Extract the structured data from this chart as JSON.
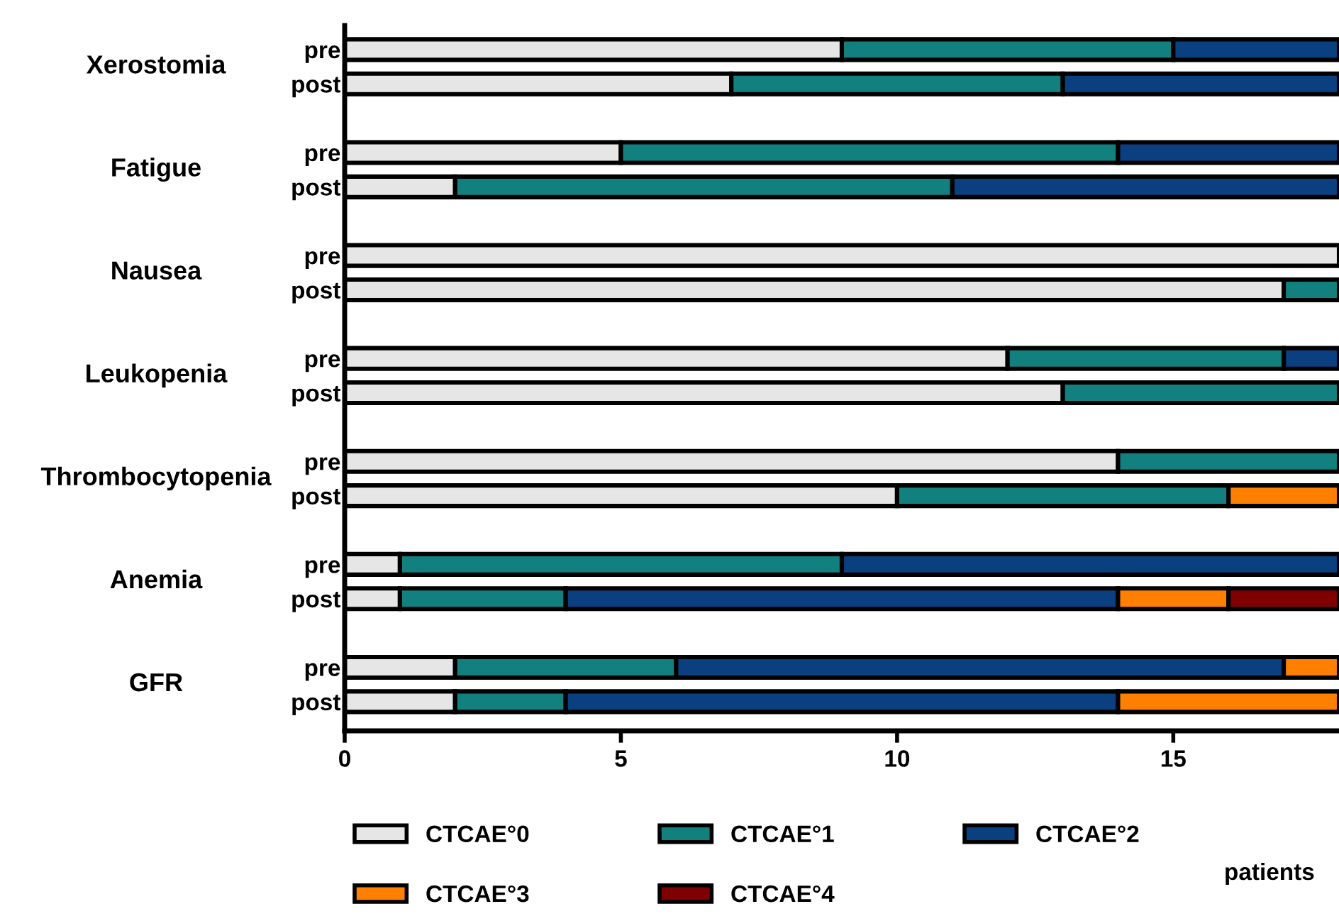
{
  "chart_data": {
    "type": "bar",
    "orientation": "horizontal",
    "stacked": true,
    "categories": [
      "pre",
      "post",
      "pre",
      "post",
      "pre",
      "post",
      "pre",
      "post",
      "pre",
      "post",
      "pre",
      "post",
      "pre",
      "post"
    ],
    "annotations": [
      "Xerostomia",
      "Fatigue",
      "Nausea",
      "Leukopenia",
      "Thrombocytopenia",
      "Anemia",
      "GFR"
    ],
    "series": [
      {
        "name": "CTCAE°0",
        "color": "#e6e6e6",
        "values": [
          9,
          7,
          5,
          2,
          18,
          17,
          12,
          13,
          14,
          10,
          1,
          1,
          2,
          2
        ]
      },
      {
        "name": "CTCAE°1",
        "color": "#138080",
        "values": [
          6,
          6,
          9,
          9,
          0,
          1,
          5,
          5,
          4,
          6,
          8,
          3,
          4,
          2
        ]
      },
      {
        "name": "CTCAE°2",
        "color": "#0a3f80",
        "values": [
          3,
          5,
          4,
          7,
          0,
          0,
          1,
          0,
          0,
          0,
          9,
          10,
          11,
          10
        ]
      },
      {
        "name": "CTCAE°3",
        "color": "#ff8000",
        "values": [
          0,
          0,
          0,
          0,
          0,
          0,
          0,
          0,
          0,
          2,
          0,
          2,
          1,
          4
        ]
      },
      {
        "name": "CTCAE°4",
        "color": "#7f0000",
        "values": [
          0,
          0,
          0,
          0,
          0,
          0,
          0,
          0,
          0,
          0,
          0,
          2,
          0,
          0
        ]
      }
    ],
    "xlabel": "patients",
    "xlim": [
      0,
      18
    ],
    "xticks": [
      0,
      5,
      10,
      15
    ],
    "grid": false,
    "legend": "bottom"
  }
}
